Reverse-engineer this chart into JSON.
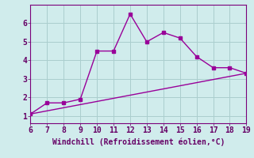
{
  "xlabel": "Windchill (Refroidissement éolien,°C)",
  "line1_x": [
    6,
    7,
    8,
    9,
    10,
    11,
    12,
    13,
    14,
    15,
    16,
    17,
    18,
    19
  ],
  "line1_y": [
    1.1,
    1.7,
    1.7,
    1.9,
    4.5,
    4.5,
    6.5,
    5.0,
    5.5,
    5.2,
    4.2,
    3.6,
    3.6,
    3.3
  ],
  "line2_x": [
    6,
    19
  ],
  "line2_y": [
    1.1,
    3.3
  ],
  "line_color": "#990099",
  "bg_color": "#d0ecec",
  "grid_color": "#aacece",
  "axis_color": "#660066",
  "text_color": "#660066",
  "spine_color": "#7a007a",
  "xlim": [
    6,
    19
  ],
  "ylim": [
    0.6,
    7.0
  ],
  "yticks": [
    1,
    2,
    3,
    4,
    5,
    6
  ],
  "xticks": [
    6,
    7,
    8,
    9,
    10,
    11,
    12,
    13,
    14,
    15,
    16,
    17,
    18,
    19
  ],
  "markersize": 3,
  "linewidth": 1.0,
  "xlabel_fontsize": 7.0,
  "tick_fontsize": 7.0
}
